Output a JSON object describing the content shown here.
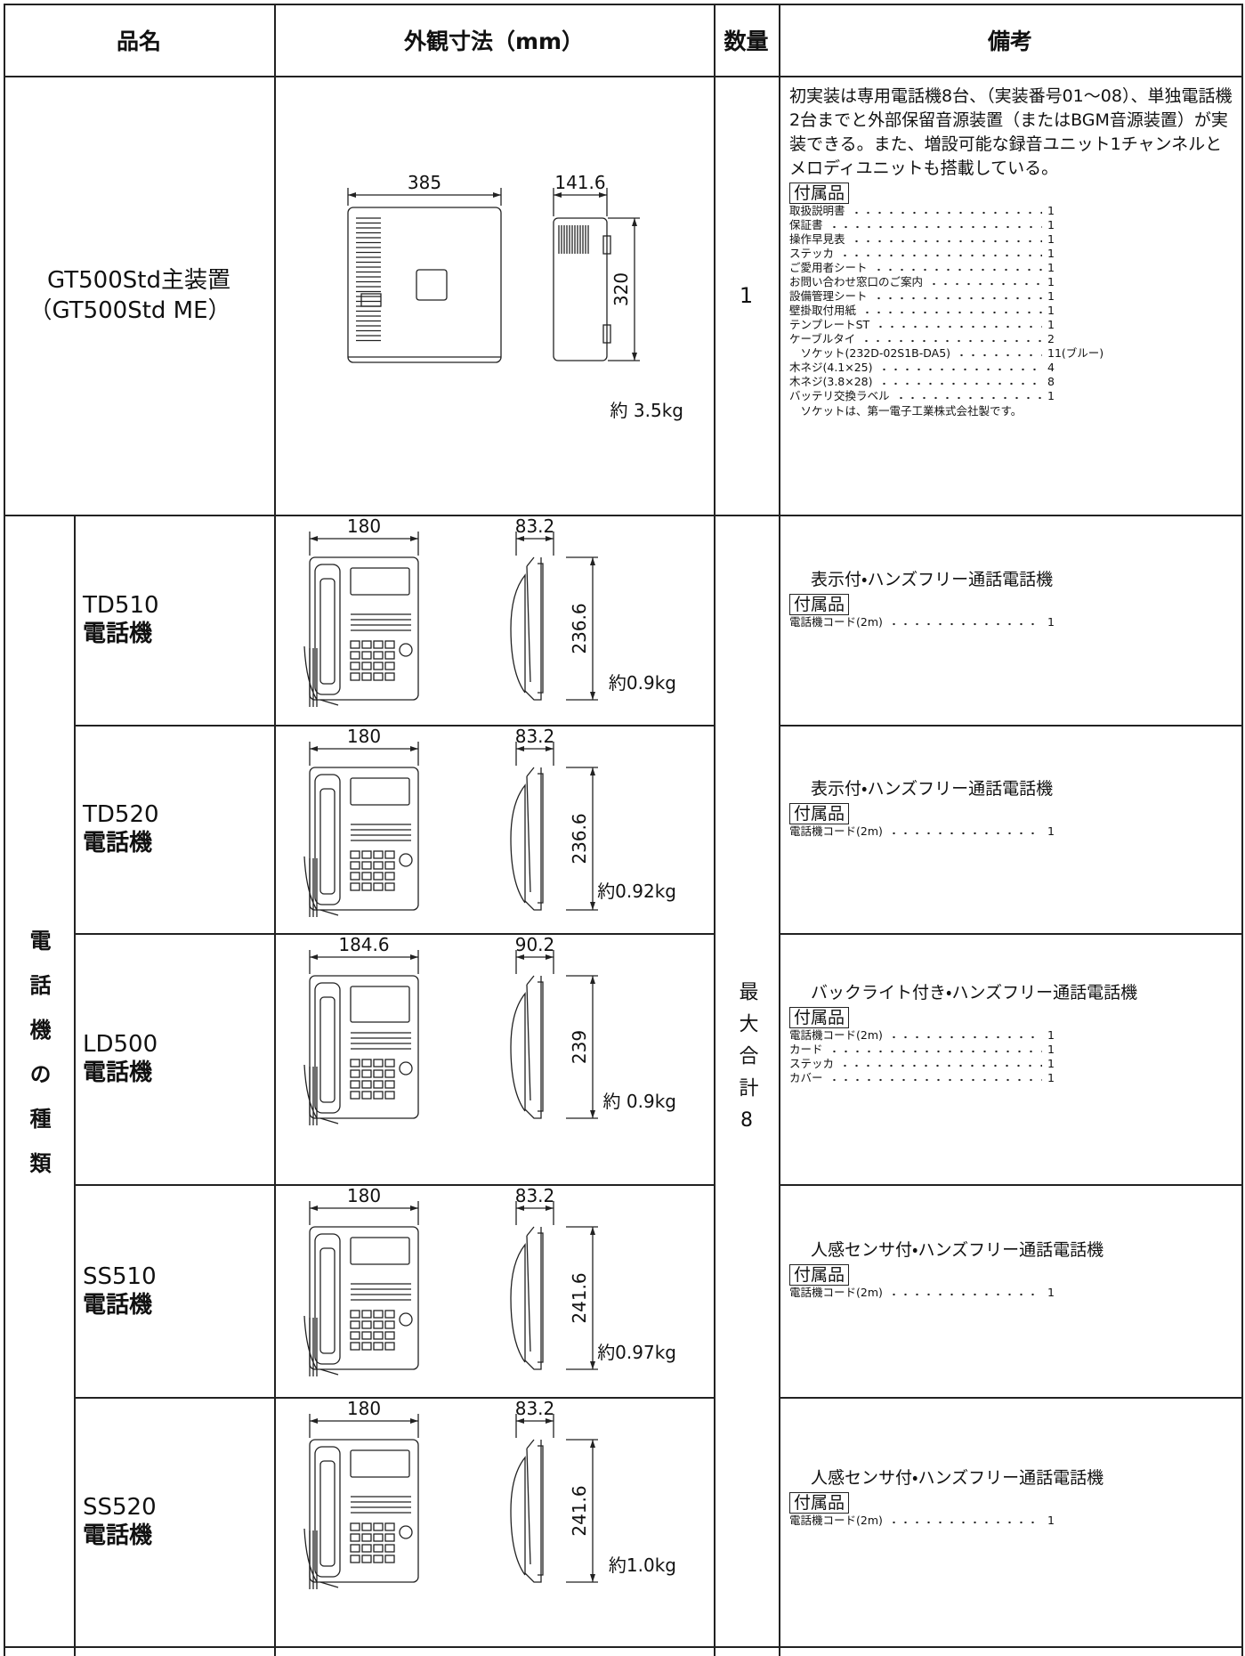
{
  "header": {
    "name": "品名",
    "dimensions": "外観寸法（mm）",
    "quantity": "数量",
    "remarks": "備考"
  },
  "main_unit": {
    "name": [
      "GT500Std主装置",
      "（GT500Std ME）"
    ],
    "width": "385",
    "depth": "141.6",
    "height": "320",
    "weight": "約 3.5kg",
    "quantity": "1",
    "description": "初実装は専用電話機8台、（実装番号01～08）、単独電話機2台までと外部保留音源装置（またはBGM音源装置）が実装できる。また、増設可能な録音ユニット1チャンネルとメロディユニットも搭載している。",
    "accessories_title": "付属品",
    "accessories": [
      {
        "item": "取扱説明書",
        "count": "1"
      },
      {
        "item": "保証書",
        "count": "1"
      },
      {
        "item": "操作早見表",
        "count": "1"
      },
      {
        "item": "ステッカ",
        "count": "1"
      },
      {
        "item": "ご愛用者シート",
        "count": "1"
      },
      {
        "item": "お問い合わせ窓口のご案内",
        "count": "1"
      },
      {
        "item": "設備管理シート",
        "count": "1"
      },
      {
        "item": "壁掛取付用紙",
        "count": "1"
      },
      {
        "item": "テンプレートST",
        "count": "1"
      },
      {
        "item": "ケーブルタイ",
        "count": "2"
      },
      {
        "item": "　ソケット(232D-02S1B-DA5)",
        "count": "11(ブルー)"
      },
      {
        "item": "木ネジ(4.1×25)",
        "count": "4"
      },
      {
        "item": "木ネジ(3.8×28)",
        "count": "8"
      },
      {
        "item": "バッテリ交換ラベル",
        "count": "1"
      }
    ],
    "note": "　ソケットは、第一電子工業株式会社製です。"
  },
  "phones": {
    "category": "電話機の種類",
    "quantity": "最大合計8",
    "items": [
      {
        "model": "TD510",
        "kind": "電話機",
        "width": "180",
        "depth": "83.2",
        "height": "236.6",
        "weight": "約0.9kg",
        "description": "表示付・ハンズフリー通話電話機",
        "accessories_title": "付属品",
        "accessories": [
          {
            "item": "電話機コード(2m)",
            "count": "1"
          }
        ]
      },
      {
        "model": "TD520",
        "kind": "電話機",
        "width": "180",
        "depth": "83.2",
        "height": "236.6",
        "weight": "約0.92kg",
        "description": "表示付・ハンズフリー通話電話機",
        "accessories_title": "付属品",
        "accessories": [
          {
            "item": "電話機コード(2m)",
            "count": "1"
          }
        ]
      },
      {
        "model": "LD500",
        "kind": "電話機",
        "width": "184.6",
        "depth": "90.2",
        "height": "239",
        "weight": "約 0.9kg",
        "description": "バックライト付き・ハンズフリー通話電話機",
        "accessories_title": "付属品",
        "accessories": [
          {
            "item": "電話機コード(2m)",
            "count": "1"
          },
          {
            "item": "カード",
            "count": "1"
          },
          {
            "item": "ステッカ",
            "count": "1"
          },
          {
            "item": "カバー",
            "count": "1"
          }
        ]
      },
      {
        "model": "SS510",
        "kind": "電話機",
        "width": "180",
        "depth": "83.2",
        "height": "241.6",
        "weight": "約0.97kg",
        "description": "人感センサ付・ハンズフリー通話電話機",
        "accessories_title": "付属品",
        "accessories": [
          {
            "item": "電話機コード(2m)",
            "count": "1"
          }
        ]
      },
      {
        "model": "SS520",
        "kind": "電話機",
        "width": "180",
        "depth": "83.2",
        "height": "241.6",
        "weight": "約1.0kg",
        "description": "人感センサ付・ハンズフリー通話電話機",
        "accessories_title": "付属品",
        "accessories": [
          {
            "item": "電話機コード(2m)",
            "count": "1"
          }
        ]
      }
    ]
  }
}
